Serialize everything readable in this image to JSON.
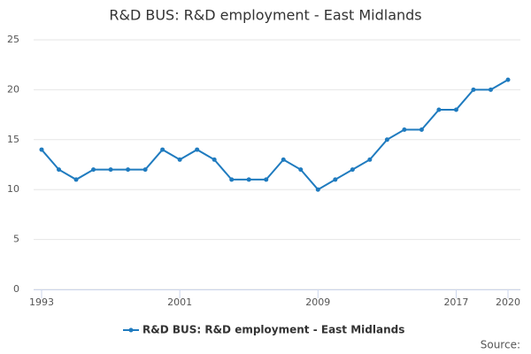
{
  "chart_data": {
    "type": "line",
    "title": "R&D BUS: R&D employment - East Midlands",
    "x": [
      1993,
      1994,
      1995,
      1996,
      1997,
      1998,
      1999,
      2000,
      2001,
      2002,
      2003,
      2004,
      2005,
      2006,
      2007,
      2008,
      2009,
      2010,
      2011,
      2012,
      2013,
      2014,
      2015,
      2016,
      2017,
      2018,
      2019,
      2020
    ],
    "series": [
      {
        "name": "R&D BUS: R&D employment - East Midlands",
        "color": "#1f7bbf",
        "values": [
          14,
          12,
          11,
          12,
          12,
          12,
          12,
          14,
          13,
          14,
          13,
          11,
          11,
          11,
          13,
          12,
          10,
          11,
          12,
          13,
          15,
          16,
          16,
          18,
          18,
          20,
          20,
          21
        ]
      }
    ],
    "xlim": [
      1993,
      2020
    ],
    "xticks": [
      1993,
      2001,
      2009,
      2017,
      2020
    ],
    "ylim": [
      0,
      25
    ],
    "yticks": [
      0,
      5,
      10,
      15,
      20,
      25
    ],
    "grid": true,
    "legend": "bottom",
    "source": "Source:"
  }
}
